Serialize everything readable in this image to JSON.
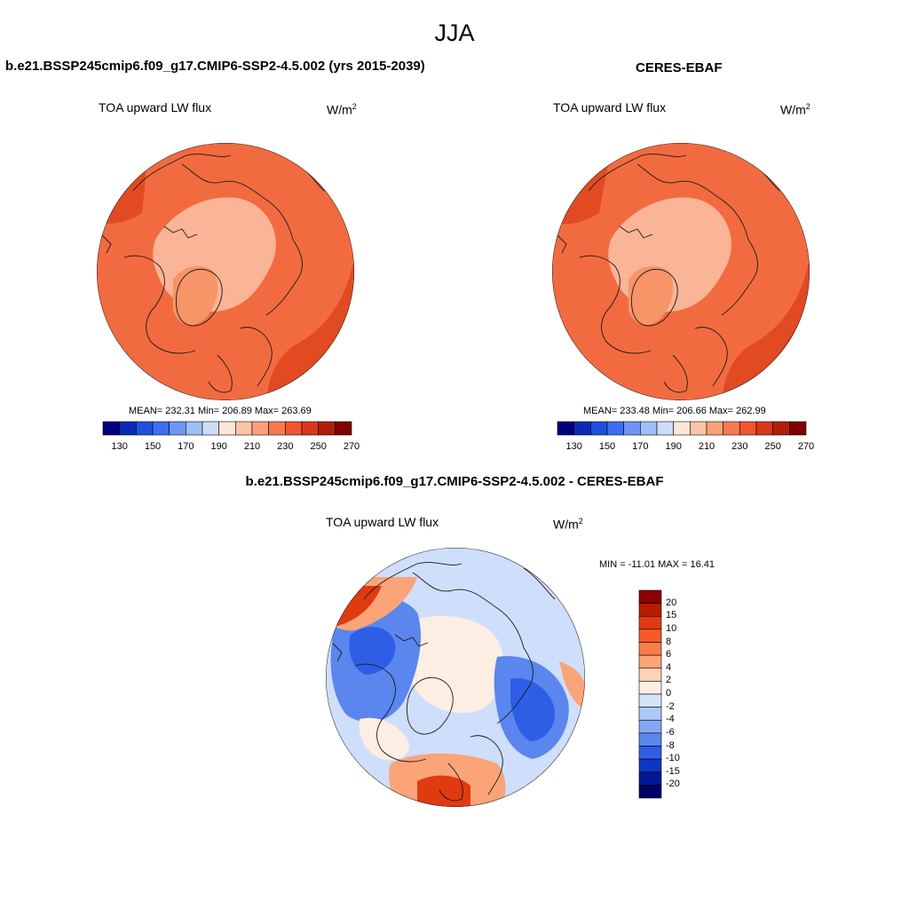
{
  "season": "JJA",
  "panels": [
    {
      "id": "model",
      "header": "b.e21.BSSP245cmip6.f09_g17.CMIP6-SSP2-4.5.002 (yrs 2015-2039)",
      "variable": "TOA upward LW flux",
      "units": "W/m",
      "units_sup": "2",
      "stats": "MEAN= 232.31  Min= 206.89  Max= 263.69",
      "mean": 232.31,
      "min": 206.89,
      "max": 263.69
    },
    {
      "id": "obs",
      "header": "CERES-EBAF",
      "variable": "TOA upward LW flux",
      "units": "W/m",
      "units_sup": "2",
      "stats": "MEAN= 233.48  Min= 206.66  Max= 262.99",
      "mean": 233.48,
      "min": 206.66,
      "max": 262.99
    }
  ],
  "difference": {
    "header": "b.e21.BSSP245cmip6.f09_g17.CMIP6-SSP2-4.5.002 - CERES-EBAF",
    "variable": "TOA upward LW flux",
    "units": "W/m",
    "units_sup": "2",
    "stats": "MIN = -11.01 MAX =  16.41",
    "min": -11.01,
    "max": 16.41
  },
  "abs_colorbar": {
    "tick_labels": [
      "130",
      "150",
      "170",
      "190",
      "210",
      "230",
      "250",
      "270"
    ],
    "colors": [
      "#000080",
      "#0a2ab5",
      "#1e50e0",
      "#3c6ef0",
      "#6e96f5",
      "#a0bef8",
      "#cddcfa",
      "#fde8d8",
      "#fcc4a6",
      "#fba07a",
      "#f87a52",
      "#f0562e",
      "#d8381a",
      "#b01e0a",
      "#800000"
    ]
  },
  "diff_colorbar": {
    "tick_labels": [
      "20",
      "15",
      "10",
      "8",
      "6",
      "4",
      "2",
      "0",
      "-2",
      "-4",
      "-6",
      "-8",
      "-10",
      "-15",
      "-20"
    ],
    "colors": [
      "#8b0000",
      "#b81c00",
      "#e03a10",
      "#f85a26",
      "#fa7d48",
      "#fba478",
      "#fdd2b6",
      "#fdeee4",
      "#d6e4fb",
      "#aec8f8",
      "#86a8f4",
      "#5a86ee",
      "#2e5ee6",
      "#0e36c4",
      "#001894",
      "#000066"
    ]
  },
  "map_colors": {
    "coast": "#1a1a1a",
    "model_base": "#f26b40",
    "model_mid": "#f79468",
    "model_low": "#fab496",
    "model_high": "#e24a22",
    "model_max": "#c6301a",
    "obs_base": "#f26b40",
    "obs_mid": "#f79468",
    "obs_low": "#fab496",
    "obs_high": "#e24a22",
    "obs_max": "#c6301a",
    "diff_base": "#cfdefb",
    "diff_blue": "#5a86ee",
    "diff_deep": "#2e5ee6",
    "diff_pale": "#fdeee4",
    "diff_warm": "#fba478",
    "diff_hot": "#e03a10"
  }
}
